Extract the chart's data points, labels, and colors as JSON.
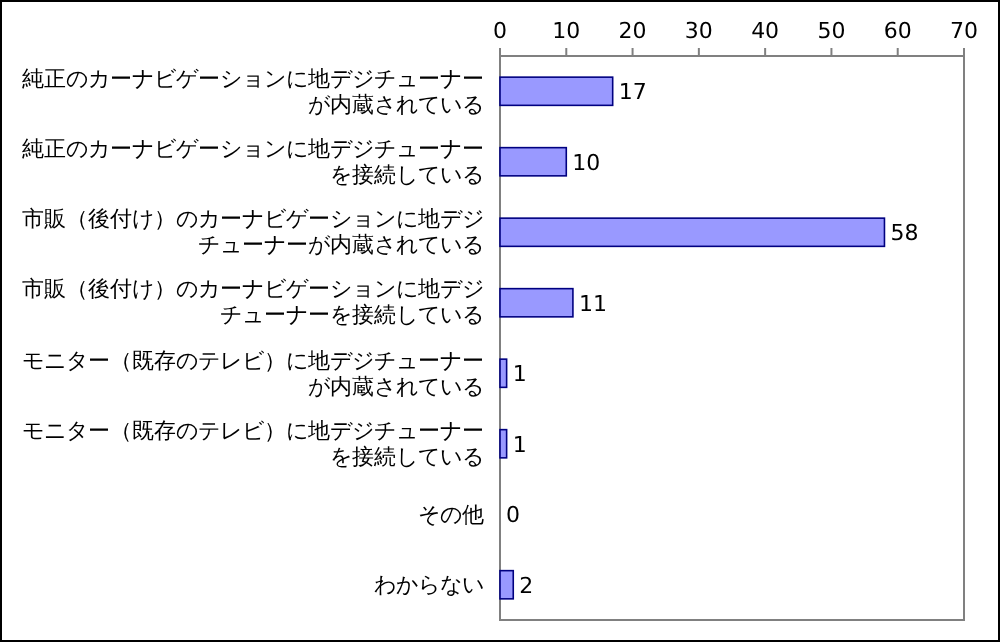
{
  "chart_data": {
    "type": "bar",
    "orientation": "horizontal",
    "categories": [
      "純正のカーナビゲーションに地デジチューナーが内蔵されている",
      "純正のカーナビゲーションに地デジチューナーを接続している",
      "市販（後付け）のカーナビゲーションに地デジチューナーが内蔵されている",
      "市販（後付け）のカーナビゲーションに地デジチューナーを接続している",
      "モニター（既存のテレビ）に地デジチューナーが内蔵されている",
      "モニター（既存のテレビ）に地デジチューナーを接続している",
      "その他",
      "わからない"
    ],
    "values": [
      17,
      10,
      58,
      11,
      1,
      1,
      0,
      2
    ],
    "color": "#9999ff",
    "xlim": [
      0,
      70
    ],
    "xticks": [
      0,
      10,
      20,
      30,
      40,
      50,
      60,
      70
    ],
    "data_labels": true
  }
}
